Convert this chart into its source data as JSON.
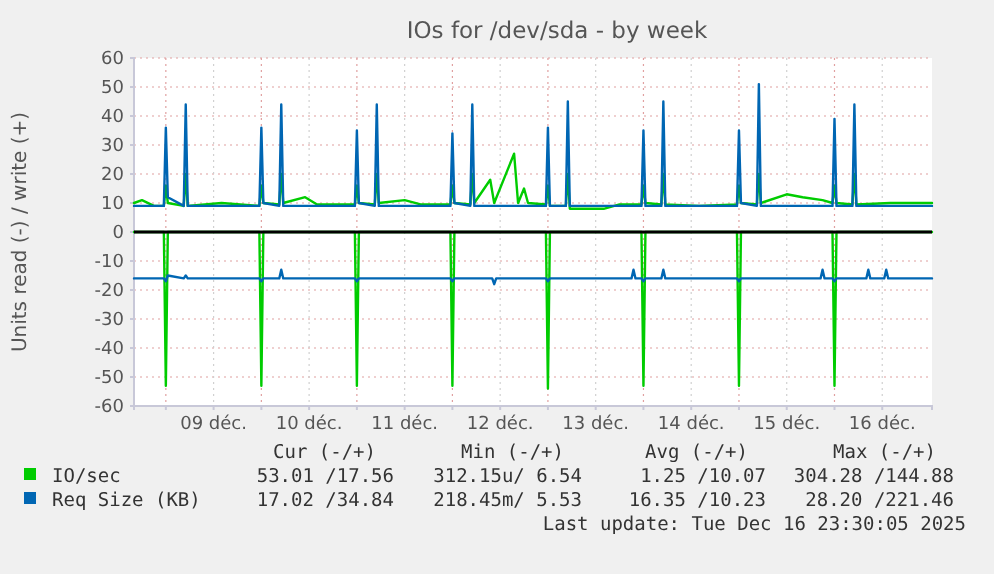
{
  "chart_data": {
    "type": "line",
    "title": "IOs for /dev/sda - by week",
    "ylabel": "Units read (-) / write (+)",
    "xlim": [
      "2025-12-08T16:00",
      "2025-12-17T00:30"
    ],
    "xticks": [
      {
        "value": "2025-12-09T00:00",
        "label": null
      },
      {
        "value": "2025-12-09T12:00",
        "label": "09 déc."
      },
      {
        "value": "2025-12-10T00:00",
        "label": null
      },
      {
        "value": "2025-12-10T12:00",
        "label": "10 déc."
      },
      {
        "value": "2025-12-11T00:00",
        "label": null
      },
      {
        "value": "2025-12-11T12:00",
        "label": "11 déc."
      },
      {
        "value": "2025-12-12T00:00",
        "label": null
      },
      {
        "value": "2025-12-12T12:00",
        "label": "12 déc."
      },
      {
        "value": "2025-12-13T00:00",
        "label": null
      },
      {
        "value": "2025-12-13T12:00",
        "label": "13 déc."
      },
      {
        "value": "2025-12-14T00:00",
        "label": null
      },
      {
        "value": "2025-12-14T12:00",
        "label": "14 déc."
      },
      {
        "value": "2025-12-15T00:00",
        "label": null
      },
      {
        "value": "2025-12-15T12:00",
        "label": "15 déc."
      },
      {
        "value": "2025-12-16T00:00",
        "label": null
      },
      {
        "value": "2025-12-16T12:00",
        "label": "16 déc."
      }
    ],
    "ylim": [
      -60,
      60
    ],
    "yticks": [
      -60,
      -50,
      -40,
      -30,
      -20,
      -10,
      0,
      10,
      20,
      30,
      40,
      50,
      60
    ],
    "grid": true,
    "legend": "bottom",
    "ref_lines": [
      {
        "axis": "y",
        "value": 0,
        "color": "#000000"
      }
    ],
    "series": [
      {
        "name": "IO/sec",
        "color": "#00cc00",
        "x": [
          "2025-12-08T16:00",
          "2025-12-08T18:00",
          "2025-12-08T21:00",
          "2025-12-08T23:30",
          "2025-12-09T00:00",
          "2025-12-09T00:30",
          "2025-12-09T04:30",
          "2025-12-09T05:00",
          "2025-12-09T05:30",
          "2025-12-09T14:00",
          "2025-12-09T23:30",
          "2025-12-10T00:00",
          "2025-12-10T00:30",
          "2025-12-10T04:30",
          "2025-12-10T05:00",
          "2025-12-10T05:30",
          "2025-12-10T11:00",
          "2025-12-10T14:00",
          "2025-12-10T23:30",
          "2025-12-11T00:00",
          "2025-12-11T00:30",
          "2025-12-11T04:30",
          "2025-12-11T05:00",
          "2025-12-11T05:30",
          "2025-12-11T12:00",
          "2025-12-11T16:00",
          "2025-12-11T23:30",
          "2025-12-12T00:00",
          "2025-12-12T00:30",
          "2025-12-12T04:30",
          "2025-12-12T05:00",
          "2025-12-12T05:30",
          "2025-12-12T09:30",
          "2025-12-12T10:30",
          "2025-12-12T15:30",
          "2025-12-12T16:30",
          "2025-12-12T18:00",
          "2025-12-12T19:00",
          "2025-12-12T23:30",
          "2025-12-13T00:00",
          "2025-12-13T00:30",
          "2025-12-13T04:30",
          "2025-12-13T05:00",
          "2025-12-13T05:30",
          "2025-12-13T14:00",
          "2025-12-13T18:00",
          "2025-12-13T23:30",
          "2025-12-14T00:00",
          "2025-12-14T00:30",
          "2025-12-14T04:30",
          "2025-12-14T05:00",
          "2025-12-14T05:30",
          "2025-12-14T14:00",
          "2025-12-14T23:30",
          "2025-12-15T00:00",
          "2025-12-15T00:30",
          "2025-12-15T04:30",
          "2025-12-15T05:00",
          "2025-12-15T05:30",
          "2025-12-15T12:00",
          "2025-12-15T16:00",
          "2025-12-15T21:00",
          "2025-12-15T23:30",
          "2025-12-16T00:00",
          "2025-12-16T00:30",
          "2025-12-16T04:30",
          "2025-12-16T05:00",
          "2025-12-16T05:30",
          "2025-12-16T14:00",
          "2025-12-17T00:30"
        ],
        "values": [
          10,
          11,
          9,
          9,
          16,
          10,
          9,
          20,
          9,
          10,
          9,
          16,
          10,
          9.5,
          20,
          10,
          12,
          9.5,
          9.5,
          16,
          10,
          9.5,
          20,
          10,
          11,
          9.5,
          9.5,
          16,
          10,
          9.5,
          20,
          10,
          18,
          10,
          27,
          10,
          15,
          10,
          9.5,
          16,
          9,
          9,
          20,
          8,
          8,
          9.5,
          9.5,
          16,
          10,
          9.5,
          20,
          9.5,
          9,
          9.5,
          16,
          10,
          9.5,
          20,
          10,
          13,
          12,
          11,
          10,
          16,
          10,
          9.5,
          20,
          9.5,
          10,
          10
        ]
      },
      {
        "color": "#00cc00",
        "x": [
          "2025-12-08T16:00",
          "2025-12-08T23:30",
          "2025-12-09T00:00",
          "2025-12-09T00:30",
          "2025-12-09T23:30",
          "2025-12-10T00:00",
          "2025-12-10T00:30",
          "2025-12-10T23:30",
          "2025-12-11T00:00",
          "2025-12-11T00:30",
          "2025-12-11T23:30",
          "2025-12-12T00:00",
          "2025-12-12T00:30",
          "2025-12-12T23:30",
          "2025-12-13T00:00",
          "2025-12-13T00:30",
          "2025-12-13T23:30",
          "2025-12-14T00:00",
          "2025-12-14T00:30",
          "2025-12-14T23:30",
          "2025-12-15T00:00",
          "2025-12-15T00:30",
          "2025-12-15T23:30",
          "2025-12-16T00:00",
          "2025-12-16T00:30",
          "2025-12-17T00:30"
        ],
        "values": [
          0,
          0,
          -53,
          0,
          0,
          -53,
          0,
          0,
          -53,
          0,
          0,
          -53,
          0,
          0,
          -54,
          0,
          0,
          -53,
          0,
          0,
          -53,
          0,
          0,
          -53,
          0,
          0
        ]
      },
      {
        "name": "Req Size (KB)",
        "color": "#0066b3",
        "x": [
          "2025-12-08T16:00",
          "2025-12-08T23:30",
          "2025-12-09T00:00",
          "2025-12-09T00:30",
          "2025-12-09T04:30",
          "2025-12-09T05:00",
          "2025-12-09T05:30",
          "2025-12-09T14:00",
          "2025-12-09T23:30",
          "2025-12-10T00:00",
          "2025-12-10T00:30",
          "2025-12-10T04:30",
          "2025-12-10T05:00",
          "2025-12-10T05:30",
          "2025-12-10T14:00",
          "2025-12-10T23:30",
          "2025-12-11T00:00",
          "2025-12-11T00:30",
          "2025-12-11T04:30",
          "2025-12-11T05:00",
          "2025-12-11T05:30",
          "2025-12-11T14:00",
          "2025-12-11T23:30",
          "2025-12-12T00:00",
          "2025-12-12T00:30",
          "2025-12-12T04:30",
          "2025-12-12T05:00",
          "2025-12-12T05:30",
          "2025-12-12T14:00",
          "2025-12-12T23:30",
          "2025-12-13T00:00",
          "2025-12-13T00:30",
          "2025-12-13T04:30",
          "2025-12-13T05:00",
          "2025-12-13T05:30",
          "2025-12-13T14:00",
          "2025-12-13T23:30",
          "2025-12-14T00:00",
          "2025-12-14T00:30",
          "2025-12-14T04:30",
          "2025-12-14T05:00",
          "2025-12-14T05:30",
          "2025-12-14T14:00",
          "2025-12-14T23:30",
          "2025-12-15T00:00",
          "2025-12-15T00:30",
          "2025-12-15T04:30",
          "2025-12-15T05:00",
          "2025-12-15T05:30",
          "2025-12-15T14:00",
          "2025-12-15T23:30",
          "2025-12-16T00:00",
          "2025-12-16T00:30",
          "2025-12-16T04:30",
          "2025-12-16T05:00",
          "2025-12-16T05:30",
          "2025-12-16T14:00",
          "2025-12-17T00:30"
        ],
        "values": [
          9,
          9,
          36,
          12,
          9,
          44,
          9,
          9,
          9,
          36,
          10,
          9,
          44,
          9,
          9,
          9,
          35,
          10,
          9,
          44,
          9,
          9,
          9,
          34,
          10,
          9,
          44,
          9,
          9,
          9,
          36,
          9,
          9,
          45,
          9,
          9,
          9,
          35,
          9,
          9,
          45,
          9,
          9,
          9,
          35,
          10,
          9,
          51,
          9,
          9,
          9,
          39,
          9,
          9,
          44,
          9,
          9,
          9
        ]
      },
      {
        "color": "#0066b3",
        "x": [
          "2025-12-08T16:00",
          "2025-12-08T23:30",
          "2025-12-09T00:00",
          "2025-12-09T00:30",
          "2025-12-09T04:30",
          "2025-12-09T05:00",
          "2025-12-09T05:30",
          "2025-12-09T23:30",
          "2025-12-10T00:00",
          "2025-12-10T00:30",
          "2025-12-10T04:30",
          "2025-12-10T05:00",
          "2025-12-10T05:30",
          "2025-12-10T23:30",
          "2025-12-11T00:00",
          "2025-12-11T00:30",
          "2025-12-11T23:30",
          "2025-12-12T00:00",
          "2025-12-12T00:30",
          "2025-12-12T10:00",
          "2025-12-12T10:30",
          "2025-12-12T11:00",
          "2025-12-12T23:30",
          "2025-12-13T00:00",
          "2025-12-13T00:30",
          "2025-12-13T21:00",
          "2025-12-13T21:30",
          "2025-12-13T22:00",
          "2025-12-13T23:30",
          "2025-12-14T00:00",
          "2025-12-14T00:30",
          "2025-12-14T04:30",
          "2025-12-14T05:00",
          "2025-12-14T05:30",
          "2025-12-14T23:30",
          "2025-12-15T00:00",
          "2025-12-15T00:30",
          "2025-12-15T20:30",
          "2025-12-15T21:00",
          "2025-12-15T21:30",
          "2025-12-15T23:30",
          "2025-12-16T00:00",
          "2025-12-16T00:30",
          "2025-12-16T08:00",
          "2025-12-16T08:30",
          "2025-12-16T09:00",
          "2025-12-16T12:30",
          "2025-12-16T13:00",
          "2025-12-16T13:30",
          "2025-12-17T00:30"
        ],
        "values": [
          -16,
          -16,
          -17,
          -15,
          -16,
          -15,
          -16,
          -16,
          -17,
          -16,
          -16,
          -13,
          -16,
          -16,
          -17,
          -16,
          -16,
          -17,
          -16,
          -16,
          -18,
          -16,
          -16,
          -17,
          -16,
          -16,
          -13,
          -16,
          -16,
          -17,
          -16,
          -16,
          -13,
          -16,
          -16,
          -17,
          -16,
          -16,
          -13,
          -16,
          -16,
          -17,
          -16,
          -16,
          -13,
          -16,
          -16,
          -13,
          -16,
          -16
        ]
      }
    ],
    "annotations": [
      "Cur (-/+)",
      "Min (-/+)",
      "Avg (-/+)",
      "Max (-/+)",
      "53.01 /17.56",
      "312.15u/ 6.54",
      "1.25 /10.07",
      "304.28 /144.88",
      "17.02 /34.84",
      "218.45m/ 5.53",
      "16.35 /10.23",
      "28.20 /221.46",
      "Last update: Tue Dec 16 23:30:05 2025"
    ]
  }
}
